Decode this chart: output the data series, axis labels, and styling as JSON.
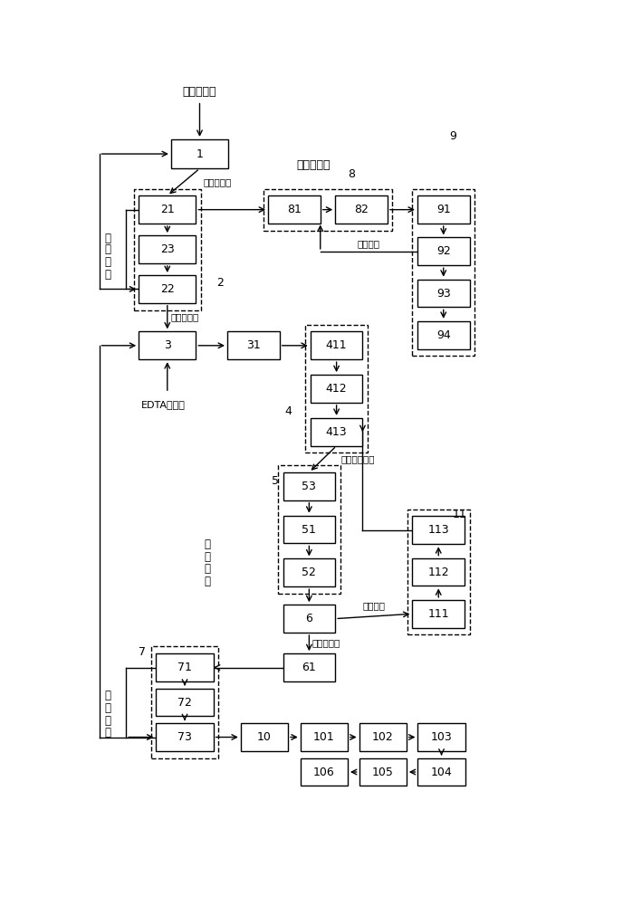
{
  "bg_color": "#ffffff",
  "boxes": {
    "1": [
      0.24,
      0.935,
      0.115,
      0.042
    ],
    "21": [
      0.175,
      0.855,
      0.115,
      0.04
    ],
    "23": [
      0.175,
      0.798,
      0.115,
      0.04
    ],
    "22": [
      0.175,
      0.741,
      0.115,
      0.04
    ],
    "3": [
      0.175,
      0.66,
      0.115,
      0.04
    ],
    "31": [
      0.348,
      0.66,
      0.105,
      0.04
    ],
    "411": [
      0.515,
      0.66,
      0.105,
      0.04
    ],
    "412": [
      0.515,
      0.598,
      0.105,
      0.04
    ],
    "413": [
      0.515,
      0.536,
      0.105,
      0.04
    ],
    "53": [
      0.46,
      0.458,
      0.105,
      0.04
    ],
    "51": [
      0.46,
      0.396,
      0.105,
      0.04
    ],
    "52": [
      0.46,
      0.334,
      0.105,
      0.04
    ],
    "6": [
      0.46,
      0.268,
      0.105,
      0.04
    ],
    "61": [
      0.46,
      0.198,
      0.105,
      0.04
    ],
    "71": [
      0.21,
      0.198,
      0.115,
      0.04
    ],
    "72": [
      0.21,
      0.148,
      0.115,
      0.04
    ],
    "73": [
      0.21,
      0.098,
      0.115,
      0.04
    ],
    "10": [
      0.37,
      0.098,
      0.095,
      0.04
    ],
    "101": [
      0.49,
      0.098,
      0.095,
      0.04
    ],
    "102": [
      0.608,
      0.098,
      0.095,
      0.04
    ],
    "103": [
      0.726,
      0.098,
      0.095,
      0.04
    ],
    "104": [
      0.726,
      0.048,
      0.095,
      0.04
    ],
    "105": [
      0.608,
      0.048,
      0.095,
      0.04
    ],
    "106": [
      0.49,
      0.048,
      0.095,
      0.04
    ],
    "81": [
      0.43,
      0.855,
      0.105,
      0.04
    ],
    "82": [
      0.565,
      0.855,
      0.105,
      0.04
    ],
    "91": [
      0.73,
      0.855,
      0.105,
      0.04
    ],
    "92": [
      0.73,
      0.795,
      0.105,
      0.04
    ],
    "93": [
      0.73,
      0.735,
      0.105,
      0.04
    ],
    "94": [
      0.73,
      0.675,
      0.105,
      0.04
    ],
    "111": [
      0.72,
      0.275,
      0.105,
      0.04
    ],
    "112": [
      0.72,
      0.335,
      0.105,
      0.04
    ],
    "113": [
      0.72,
      0.395,
      0.105,
      0.04
    ]
  }
}
